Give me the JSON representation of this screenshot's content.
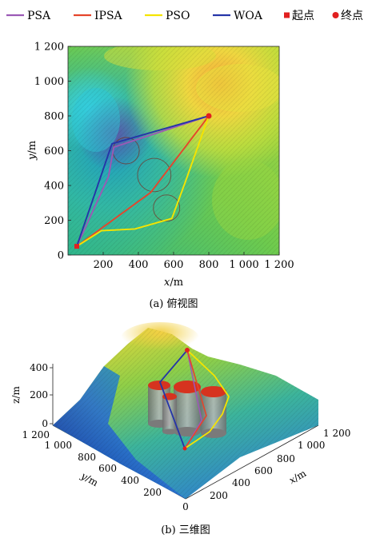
{
  "legend": {
    "items": [
      {
        "label": "PSA",
        "type": "line",
        "color": "#9b59b6"
      },
      {
        "label": "IPSA",
        "type": "line",
        "color": "#e5452b"
      },
      {
        "label": "PSO",
        "type": "line",
        "color": "#f5e400"
      },
      {
        "label": "WOA",
        "type": "line",
        "color": "#2535a8"
      },
      {
        "label": "起点",
        "type": "square",
        "color": "#e12020"
      },
      {
        "label": "终点",
        "type": "circle",
        "color": "#e12020"
      }
    ]
  },
  "chart_data": [
    {
      "type": "line",
      "panel_caption": "(a) 俯视图",
      "xlabel_var": "x",
      "xlabel_unit": "/m",
      "ylabel_var": "y",
      "ylabel_unit": "/m",
      "xlim": [
        0,
        1200
      ],
      "ylim": [
        0,
        1200
      ],
      "x_ticks": [
        {
          "value": 200,
          "label": "200"
        },
        {
          "value": 400,
          "label": "400"
        },
        {
          "value": 600,
          "label": "600"
        },
        {
          "value": 800,
          "label": "800"
        },
        {
          "value": 1000,
          "label": "1 000"
        },
        {
          "value": 1200,
          "label": "1 200"
        }
      ],
      "y_ticks": [
        {
          "value": 0,
          "label": "0"
        },
        {
          "value": 200,
          "label": "200"
        },
        {
          "value": 400,
          "label": "400"
        },
        {
          "value": 600,
          "label": "600"
        },
        {
          "value": 800,
          "label": "800"
        },
        {
          "value": 1000,
          "label": "1 000"
        },
        {
          "value": 1200,
          "label": "1 200"
        }
      ],
      "start": {
        "x": 50,
        "y": 50
      },
      "end": {
        "x": 800,
        "y": 800
      },
      "obstacles": [
        {
          "cx": 330,
          "cy": 600,
          "r": 75
        },
        {
          "cx": 490,
          "cy": 460,
          "r": 95
        },
        {
          "cx": 560,
          "cy": 270,
          "r": 75
        }
      ],
      "series": [
        {
          "name": "PSA",
          "color": "#9b59b6",
          "points": [
            [
              50,
              50
            ],
            [
              230,
              450
            ],
            [
              260,
              620
            ],
            [
              800,
              800
            ]
          ]
        },
        {
          "name": "IPSA",
          "color": "#e5452b",
          "points": [
            [
              50,
              50
            ],
            [
              470,
              360
            ],
            [
              800,
              800
            ]
          ]
        },
        {
          "name": "PSO",
          "color": "#f5e400",
          "points": [
            [
              50,
              50
            ],
            [
              190,
              140
            ],
            [
              380,
              150
            ],
            [
              590,
              210
            ],
            [
              670,
              430
            ],
            [
              800,
              800
            ]
          ]
        },
        {
          "name": "WOA",
          "color": "#2535a8",
          "points": [
            [
              50,
              50
            ],
            [
              250,
              640
            ],
            [
              800,
              800
            ]
          ]
        }
      ]
    },
    {
      "type": "surface3d",
      "panel_caption": "(b) 三维图",
      "zlabel": "z/m",
      "ylabel_var": "y",
      "ylabel_unit": "/m",
      "xlabel_var": "x",
      "xlabel_unit": "/m",
      "z_ticks": [
        "400",
        "200",
        "0"
      ],
      "y_ticks": [
        "1 200",
        "1 000",
        "800",
        "600",
        "400",
        "200"
      ],
      "x_ticks": [
        "0",
        "200",
        "400",
        "600",
        "800",
        "1 000",
        "1 200"
      ]
    }
  ]
}
